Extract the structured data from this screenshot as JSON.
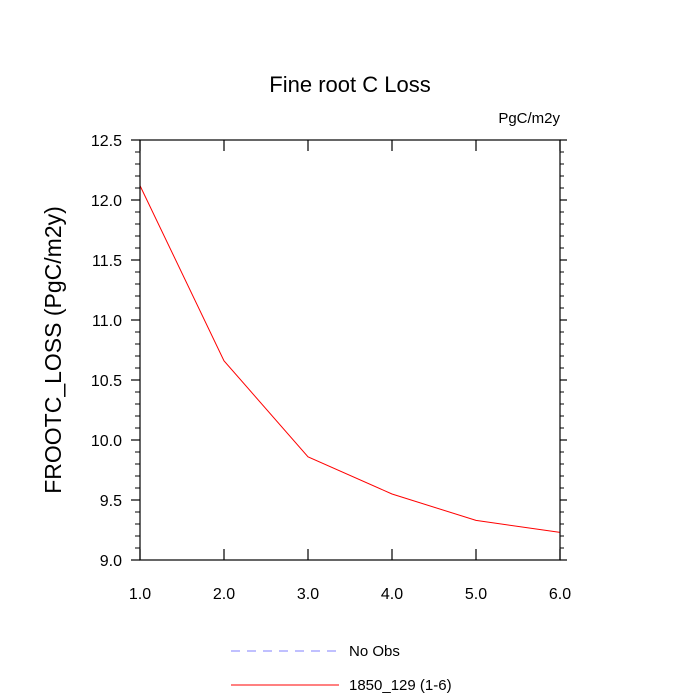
{
  "chart_data": {
    "type": "line",
    "title": "Fine root C Loss",
    "units": "PgC/m2y",
    "ylabel": "FROOTC_LOSS  (PgC/m2y)",
    "xlabel": "",
    "xlim": [
      1.0,
      6.0
    ],
    "ylim": [
      9.0,
      12.5
    ],
    "xticks": [
      "1.0",
      "2.0",
      "3.0",
      "4.0",
      "5.0",
      "6.0"
    ],
    "yticks": [
      "9.0",
      "9.5",
      "10.0",
      "10.5",
      "11.0",
      "11.5",
      "12.0",
      "12.5"
    ],
    "series": [
      {
        "name": "1850_129 (1-6)",
        "color": "#ff0000",
        "style": "solid",
        "x": [
          1.0,
          2.0,
          3.0,
          4.0,
          5.0,
          6.0
        ],
        "y": [
          12.12,
          10.66,
          9.86,
          9.55,
          9.33,
          9.23
        ]
      }
    ],
    "legend": [
      {
        "label": "No Obs",
        "color": "#8080ff",
        "style": "dashed"
      },
      {
        "label": "1850_129 (1-6)",
        "color": "#ff0000",
        "style": "solid"
      }
    ],
    "legend_position": "bottom-center",
    "grid": false
  }
}
